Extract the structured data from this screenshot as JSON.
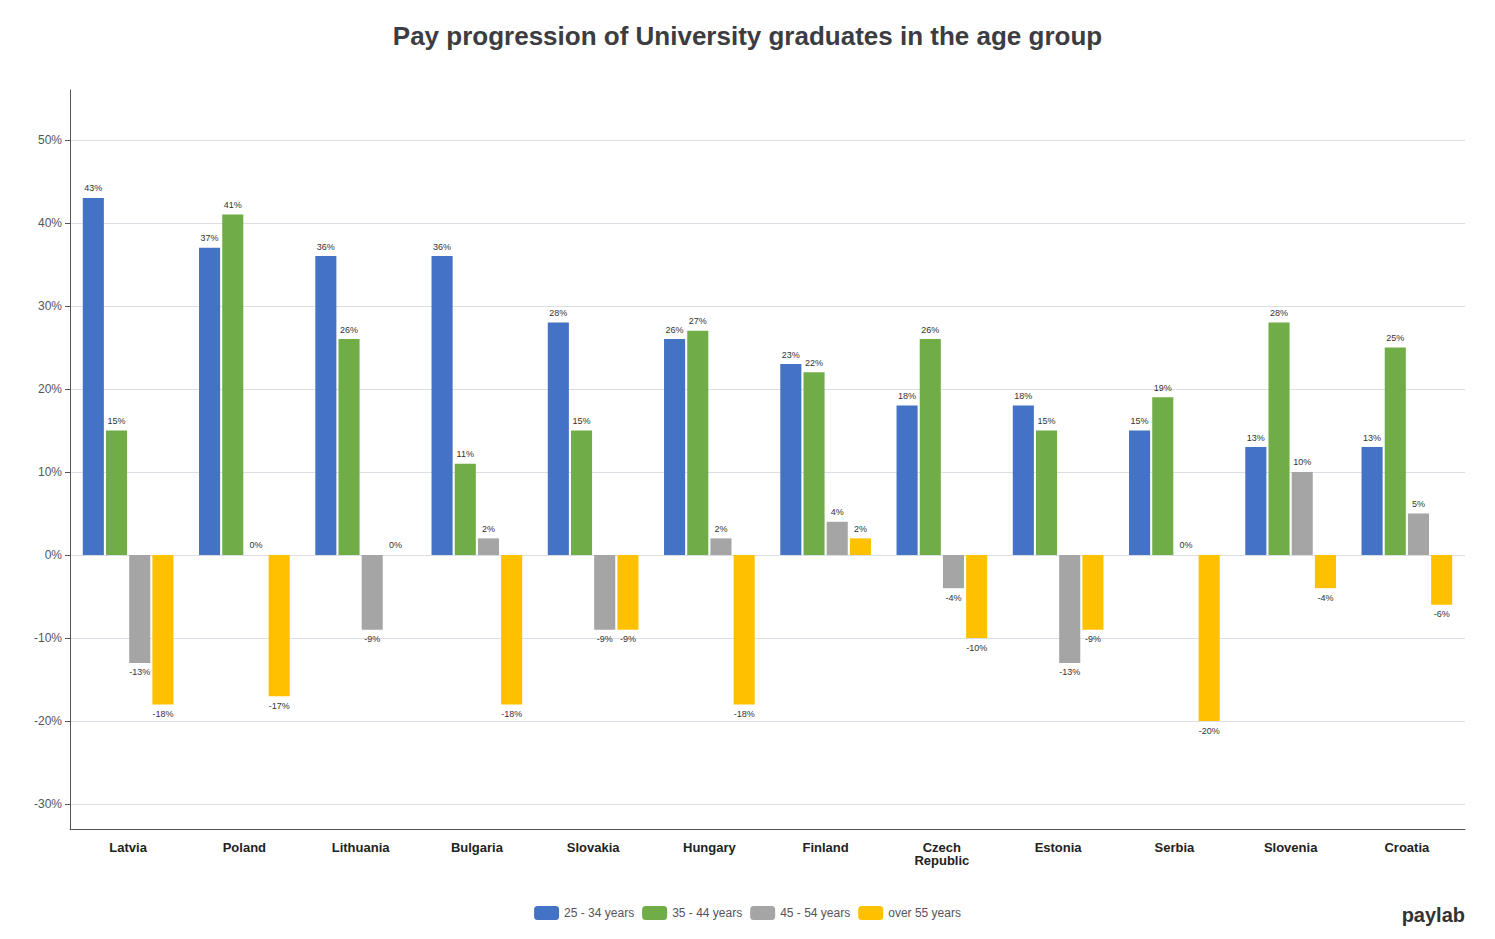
{
  "chart_data": {
    "type": "bar",
    "title": "Pay progression of University graduates in the age group",
    "categories": [
      "Latvia",
      "Poland",
      "Lithuania",
      "Bulgaria",
      "Slovakia",
      "Hungary",
      "Finland",
      "Czech\nRepublic",
      "Estonia",
      "Serbia",
      "Slovenia",
      "Croatia"
    ],
    "series": [
      {
        "name": "25 - 34 years",
        "color": "#4472c4",
        "values": [
          43,
          37,
          36,
          36,
          28,
          26,
          23,
          18,
          18,
          15,
          13,
          13
        ],
        "value_labels": [
          "43%",
          "37%",
          "36%",
          "36%",
          "28%",
          "26%",
          "23%",
          "18%",
          "18%",
          "15%",
          "13%",
          "13%"
        ]
      },
      {
        "name": "35 - 44 years",
        "color": "#70ad47",
        "values": [
          15,
          41,
          26,
          11,
          15,
          27,
          22,
          26,
          15,
          19,
          28,
          25
        ],
        "value_labels": [
          "15%",
          "41%",
          "26%",
          "11%",
          "15%",
          "27%",
          "22%",
          "26%",
          "15%",
          "19%",
          "28%",
          "25%"
        ]
      },
      {
        "name": "45 - 54 years",
        "color": "#a5a5a5",
        "values": [
          -13,
          0,
          -9,
          2,
          -9,
          2,
          4,
          -4,
          -13,
          0,
          10,
          5
        ],
        "value_labels": [
          "-13%",
          "0%",
          "-9%",
          "2%",
          "-9%",
          "2%",
          "4%",
          "-4%",
          "-13%",
          "0%",
          "10%",
          "5%"
        ]
      },
      {
        "name": "over 55 years",
        "color": "#ffc000",
        "values": [
          -18,
          -17,
          0,
          -18,
          -9,
          -18,
          2,
          -10,
          -9,
          -20,
          -4,
          -6
        ],
        "value_labels": [
          "-18%",
          "-17%",
          "0%",
          "-18%",
          "-9%",
          "-18%",
          "2%",
          "-10%",
          "-9%",
          "-20%",
          "-4%",
          "-6%"
        ]
      }
    ],
    "ylim": [
      -33,
      56
    ],
    "yticks": [
      {
        "value": -30,
        "label": "-30%"
      },
      {
        "value": -20,
        "label": "-20%"
      },
      {
        "value": -10,
        "label": "-10%"
      },
      {
        "value": 0,
        "label": "0%"
      },
      {
        "value": 10,
        "label": "10%"
      },
      {
        "value": 20,
        "label": "20%"
      },
      {
        "value": 30,
        "label": "30%"
      },
      {
        "value": 40,
        "label": "40%"
      },
      {
        "value": 50,
        "label": "50%"
      }
    ],
    "grid": true,
    "legend": "bottom",
    "data_labels": true,
    "annotations": [
      {
        "text": "paylab"
      }
    ]
  }
}
